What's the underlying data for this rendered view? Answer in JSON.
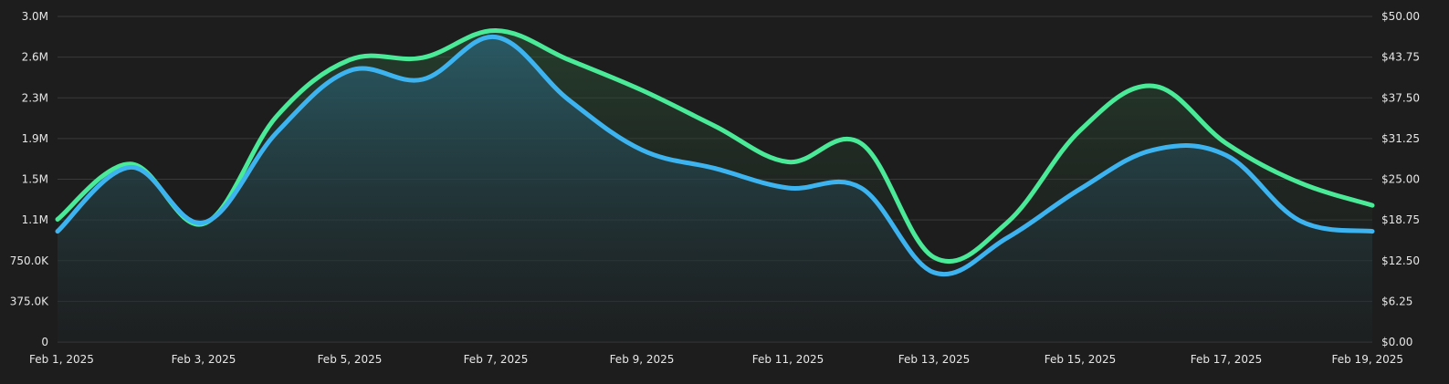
{
  "chart_data": {
    "type": "area",
    "title": "",
    "xlabel": "",
    "ylabel": "",
    "grid": true,
    "x": [
      "Feb 1, 2025",
      "Feb 2, 2025",
      "Feb 3, 2025",
      "Feb 4, 2025",
      "Feb 5, 2025",
      "Feb 6, 2025",
      "Feb 7, 2025",
      "Feb 8, 2025",
      "Feb 9, 2025",
      "Feb 10, 2025",
      "Feb 11, 2025",
      "Feb 12, 2025",
      "Feb 13, 2025",
      "Feb 14, 2025",
      "Feb 15, 2025",
      "Feb 16, 2025",
      "Feb 17, 2025",
      "Feb 18, 2025",
      "Feb 19, 2025"
    ],
    "x_tick_labels": [
      "Feb 1, 2025",
      "Feb 3, 2025",
      "Feb 5, 2025",
      "Feb 7, 2025",
      "Feb 9, 2025",
      "Feb 11, 2025",
      "Feb 13, 2025",
      "Feb 15, 2025",
      "Feb 17, 2025",
      "Feb 19, 2025"
    ],
    "y_left": {
      "min": 0,
      "max": 3000000,
      "tick_labels": [
        "0",
        "375.0K",
        "750.0K",
        "1.1M",
        "1.5M",
        "1.9M",
        "2.3M",
        "2.6M",
        "3.0M"
      ]
    },
    "y_right": {
      "min": 0,
      "max": 50,
      "tick_labels": [
        "$0.00",
        "$6.25",
        "$12.50",
        "$18.75",
        "$25.00",
        "$31.25",
        "$37.50",
        "$43.75",
        "$50.00"
      ]
    },
    "series": [
      {
        "color": "#4bea98",
        "axis": "left",
        "values": [
          1130000,
          1640000,
          1090000,
          2080000,
          2600000,
          2620000,
          2870000,
          2600000,
          2320000,
          1990000,
          1660000,
          1830000,
          780000,
          1100000,
          1950000,
          2360000,
          1830000,
          1470000,
          1260000
        ]
      },
      {
        "color": "#3db4f0",
        "axis": "left",
        "values": [
          1020000,
          1610000,
          1100000,
          1930000,
          2500000,
          2420000,
          2810000,
          2230000,
          1770000,
          1600000,
          1420000,
          1420000,
          640000,
          960000,
          1410000,
          1770000,
          1720000,
          1120000,
          1020000
        ]
      }
    ]
  }
}
